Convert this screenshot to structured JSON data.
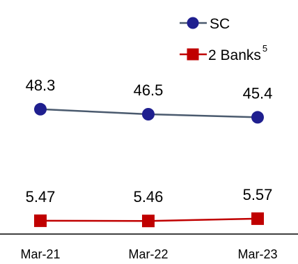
{
  "chart_data": {
    "type": "line",
    "categories": [
      "Mar-21",
      "Mar-22",
      "Mar-23"
    ],
    "series": [
      {
        "name": "SC",
        "values": [
          48.3,
          46.5,
          45.4
        ],
        "labels": [
          "48.3",
          "46.5",
          "45.4"
        ],
        "color": "#4a5a6e",
        "marker": "circle",
        "marker_color": "#1f1f8f"
      },
      {
        "name": "2 Banks",
        "name_superscript": "5",
        "values": [
          5.47,
          5.46,
          5.57
        ],
        "labels": [
          "5.47",
          "5.46",
          "5.57"
        ],
        "color": "#c00000",
        "marker": "square",
        "marker_color": "#c00000"
      }
    ],
    "legend_position": "top-right",
    "axis_break": true,
    "gridlines": false
  }
}
